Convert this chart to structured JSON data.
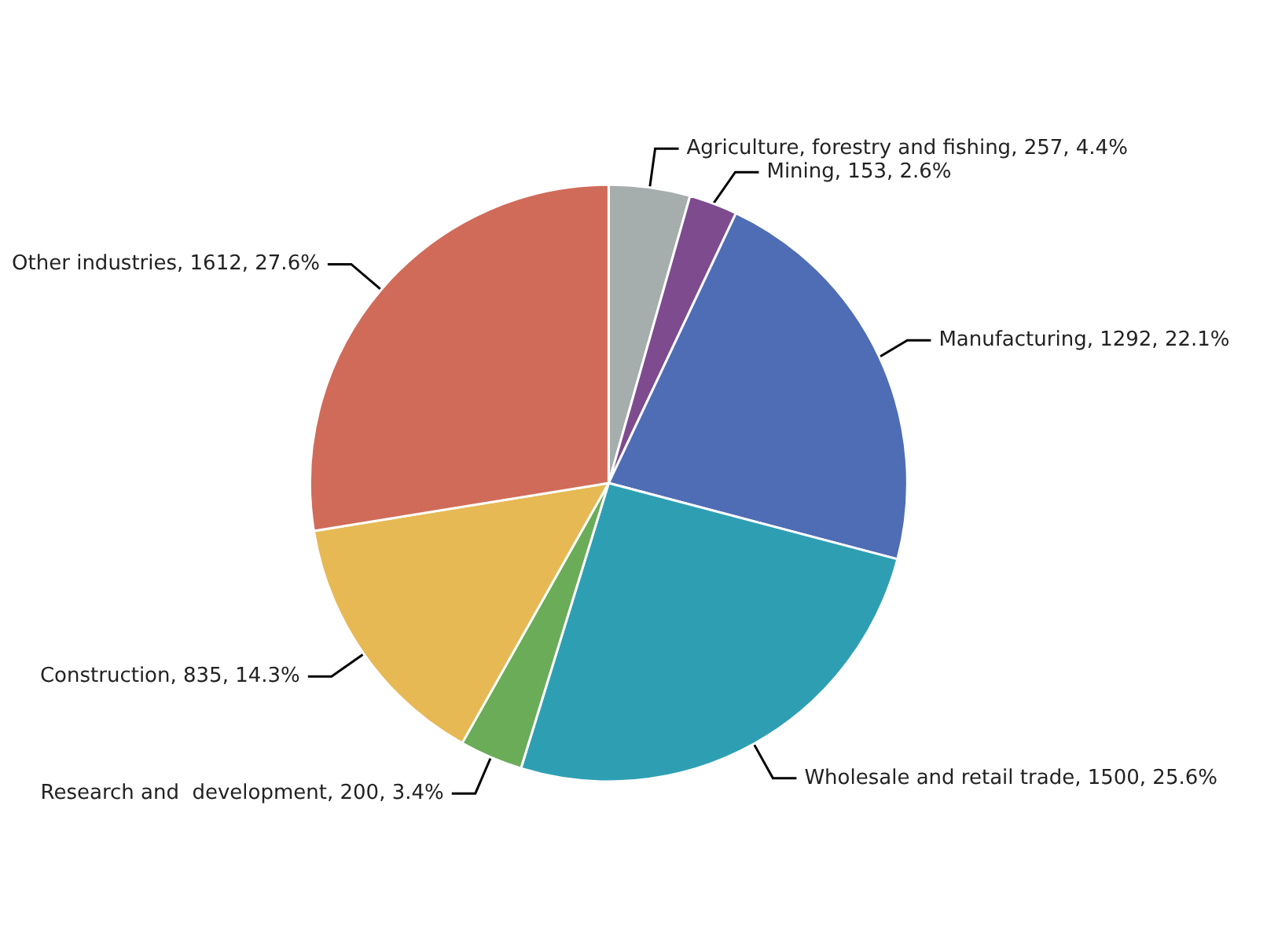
{
  "chart_data": {
    "type": "pie",
    "categories": [
      "Agriculture, forestry and fishing",
      "Mining",
      "Manufacturing",
      "Wholesale and retail trade",
      "Research and  development",
      "Construction",
      "Other industries"
    ],
    "values": [
      257,
      153,
      1292,
      1500,
      200,
      835,
      1612
    ],
    "value_labels": [
      "257, 4.4%",
      "153, 2.6%",
      "1292, 22.1%",
      "1500, 25.6%",
      "200, 3.4%",
      "835, 14.3%",
      "1612, 27.6%"
    ],
    "colors": [
      "#a5adad",
      "#7e4b8f",
      "#4f6db5",
      "#2e9fb3",
      "#6aac58",
      "#e6b955",
      "#d06b5a"
    ],
    "legend": false
  }
}
